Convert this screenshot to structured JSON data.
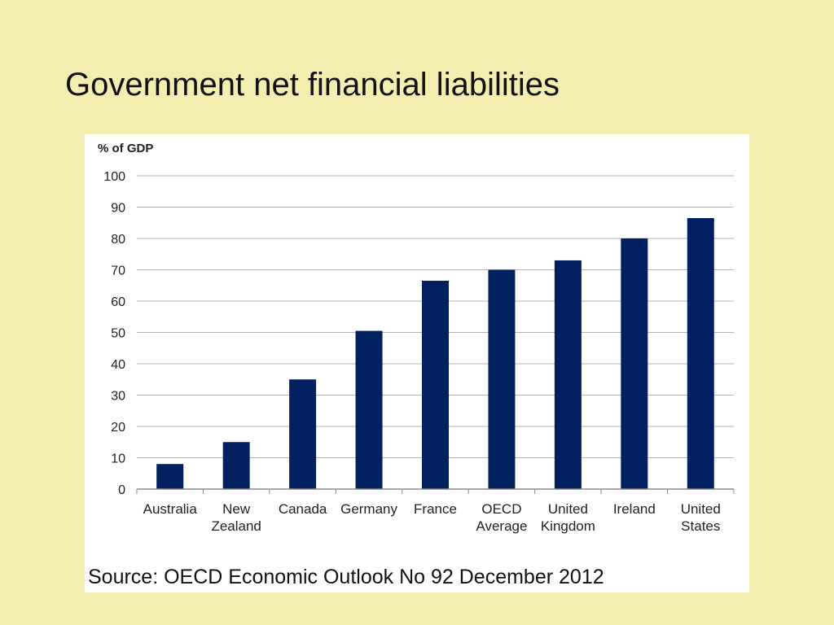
{
  "slide": {
    "title": "Government net financial liabilities",
    "source": "Source:  OECD Economic Outlook No 92 December 2012",
    "background_color": "#f3eeb0"
  },
  "chart_data": {
    "type": "bar",
    "ylabel": "% of GDP",
    "xlabel": "",
    "ylim": [
      0,
      100
    ],
    "yticks": [
      0,
      10,
      20,
      30,
      40,
      50,
      60,
      70,
      80,
      90,
      100
    ],
    "grid": true,
    "bar_color": "#002060",
    "categories": [
      [
        "Australia"
      ],
      [
        "New",
        "Zealand"
      ],
      [
        "Canada"
      ],
      [
        "Germany"
      ],
      [
        "France"
      ],
      [
        "OECD",
        "Average"
      ],
      [
        "United",
        "Kingdom"
      ],
      [
        "Ireland"
      ],
      [
        "United",
        "States"
      ]
    ],
    "values": [
      8,
      15,
      35,
      50.5,
      66.5,
      70,
      73,
      80,
      86.5
    ]
  }
}
